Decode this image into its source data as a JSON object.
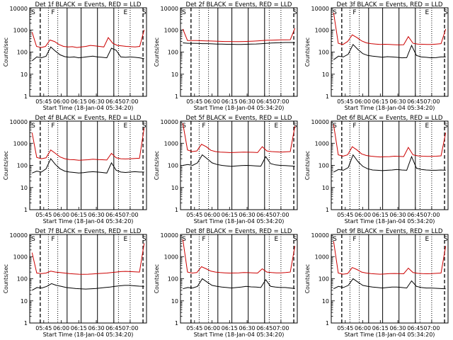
{
  "chart_data": [
    {
      "type": "line",
      "title": "Det 1f BLACK = Events, RED = LLD",
      "xlabel": "Start Time (18-Jan-04 05:34:20)",
      "ylabel": "Counts/sec",
      "y_scale": "log",
      "ylim": [
        1,
        10000
      ],
      "y_ticks": [
        "1",
        "10",
        "100",
        "1000"
      ],
      "x_ticks": [
        "05:45",
        "06:00",
        "06:15",
        "06:30",
        "06:45",
        "07:00"
      ],
      "markers": [
        "S",
        "F",
        "",
        "",
        "E",
        "S"
      ],
      "series": [
        {
          "name": "BLACK = Events",
          "color": "#000000",
          "values": [
            40,
            60,
            55,
            65,
            170,
            110,
            75,
            62,
            58,
            60,
            55,
            58,
            62,
            65,
            60,
            58,
            55,
            150,
            120,
            60,
            58,
            60,
            58,
            55,
            50
          ]
        },
        {
          "name": "RED = LLD",
          "color": "#cc0000",
          "values": [
            800,
            180,
            160,
            180,
            350,
            300,
            220,
            180,
            170,
            175,
            160,
            170,
            180,
            200,
            190,
            180,
            170,
            450,
            250,
            200,
            190,
            180,
            175,
            170,
            180,
            1000
          ]
        }
      ]
    },
    {
      "type": "line",
      "title": "Det 2f BLACK = Events, RED = LLD",
      "xlabel": "Start Time (18-Jan-04 05:34:20)",
      "ylabel": "Counts/sec",
      "y_scale": "log",
      "ylim": [
        1,
        10000
      ],
      "y_ticks": [
        "1",
        "10",
        "100",
        "1000"
      ],
      "x_ticks": [
        "05:45",
        "06:00",
        "06:15",
        "06:30",
        "06:45",
        "07:00"
      ],
      "markers": [
        "S",
        "",
        "",
        "",
        "",
        "S"
      ],
      "series": [
        {
          "name": "BLACK = Events",
          "color": "#000000",
          "values": [
            260,
            250,
            250,
            245,
            240,
            240,
            235,
            230,
            228,
            225,
            225,
            222,
            222,
            225,
            228,
            232,
            238,
            245,
            255,
            260,
            265,
            270,
            270,
            268
          ]
        },
        {
          "name": "RED = LLD",
          "color": "#cc0000",
          "values": [
            1100,
            330,
            330,
            330,
            325,
            320,
            315,
            310,
            305,
            300,
            300,
            298,
            298,
            300,
            305,
            310,
            320,
            330,
            340,
            345,
            350,
            355,
            355,
            360,
            1200
          ]
        }
      ]
    },
    {
      "type": "line",
      "title": "Det 3f BLACK = Events, RED = LLD",
      "xlabel": "Start Time (18-Jan-04 05:34:20)",
      "ylabel": "Counts/sec",
      "y_scale": "log",
      "ylim": [
        1,
        10000
      ],
      "y_ticks": [
        "1",
        "10",
        "100",
        "1000"
      ],
      "x_ticks": [
        "05:45",
        "06:00",
        "06:15",
        "06:30",
        "06:45",
        "07:00"
      ],
      "markers": [
        "S",
        "F",
        "",
        "",
        "E",
        "S"
      ],
      "series": [
        {
          "name": "BLACK = Events",
          "color": "#000000",
          "values": [
            45,
            65,
            60,
            80,
            220,
            130,
            85,
            70,
            65,
            62,
            58,
            62,
            60,
            58,
            55,
            56,
            200,
            70,
            60,
            58,
            55,
            56,
            60,
            60
          ]
        },
        {
          "name": "RED = LLD",
          "color": "#cc0000",
          "values": [
            6000,
            250,
            220,
            300,
            600,
            450,
            320,
            260,
            240,
            230,
            220,
            225,
            220,
            215,
            210,
            215,
            500,
            250,
            230,
            225,
            220,
            220,
            230,
            240,
            1100
          ]
        }
      ]
    },
    {
      "type": "line",
      "title": "Det 4f BLACK = Events, RED = LLD",
      "xlabel": "Start Time (18-Jan-04 05:34:20)",
      "ylabel": "Counts/sec",
      "y_scale": "log",
      "ylim": [
        1,
        10000
      ],
      "y_ticks": [
        "1",
        "10",
        "100",
        "1000"
      ],
      "x_ticks": [
        "05:45",
        "06:00",
        "06:15",
        "06:30",
        "06:45",
        "07:00"
      ],
      "markers": [
        "S",
        "F",
        "",
        "",
        "E",
        "S"
      ],
      "series": [
        {
          "name": "BLACK = Events",
          "color": "#000000",
          "values": [
            45,
            55,
            50,
            70,
            200,
            110,
            70,
            55,
            50,
            48,
            45,
            47,
            50,
            52,
            50,
            48,
            45,
            130,
            60,
            50,
            48,
            50,
            52,
            50,
            50
          ]
        },
        {
          "name": "RED = LLD",
          "color": "#cc0000",
          "values": [
            3000,
            230,
            200,
            220,
            500,
            350,
            240,
            200,
            185,
            180,
            170,
            175,
            180,
            190,
            185,
            180,
            175,
            350,
            220,
            200,
            195,
            200,
            205,
            210,
            5000
          ]
        }
      ]
    },
    {
      "type": "line",
      "title": "Det 5f BLACK = Events, RED = LLD",
      "xlabel": "Start Time (18-Jan-04 05:34:20)",
      "ylabel": "Counts/sec",
      "y_scale": "log",
      "ylim": [
        1,
        10000
      ],
      "y_ticks": [
        "1",
        "10",
        "100",
        "1000"
      ],
      "x_ticks": [
        "05:45",
        "06:00",
        "06:15",
        "06:30",
        "06:45",
        "07:00"
      ],
      "markers": [
        "S",
        "F",
        "",
        "",
        "E",
        "S"
      ],
      "series": [
        {
          "name": "BLACK = Events",
          "color": "#000000",
          "values": [
            100,
            110,
            100,
            130,
            300,
            200,
            130,
            110,
            100,
            95,
            90,
            95,
            98,
            100,
            98,
            95,
            92,
            250,
            120,
            105,
            100,
            98,
            95,
            92
          ]
        },
        {
          "name": "RED = LLD",
          "color": "#cc0000",
          "values": [
            8000,
            500,
            420,
            450,
            900,
            700,
            480,
            420,
            400,
            390,
            380,
            385,
            390,
            400,
            395,
            390,
            380,
            700,
            450,
            420,
            410,
            400,
            410,
            420,
            6000
          ]
        }
      ]
    },
    {
      "type": "line",
      "title": "Det 6f BLACK = Events, RED = LLD",
      "xlabel": "Start Time (18-Jan-04 05:34:20)",
      "ylabel": "Counts/sec",
      "y_scale": "log",
      "ylim": [
        1,
        10000
      ],
      "y_ticks": [
        "1",
        "10",
        "100",
        "1000"
      ],
      "x_ticks": [
        "05:45",
        "06:00",
        "06:15",
        "06:30",
        "06:45",
        "07:00"
      ],
      "markers": [
        "S",
        "F",
        "",
        "",
        "E",
        "S"
      ],
      "series": [
        {
          "name": "BLACK = Events",
          "color": "#000000",
          "values": [
            50,
            65,
            60,
            80,
            300,
            150,
            90,
            70,
            62,
            60,
            58,
            60,
            62,
            65,
            62,
            60,
            250,
            75,
            65,
            62,
            60,
            60,
            62,
            60
          ]
        },
        {
          "name": "RED = LLD",
          "color": "#cc0000",
          "values": [
            7000,
            300,
            260,
            300,
            700,
            500,
            330,
            280,
            260,
            250,
            240,
            245,
            250,
            260,
            255,
            250,
            650,
            300,
            270,
            260,
            255,
            255,
            260,
            270,
            3000
          ]
        }
      ]
    },
    {
      "type": "line",
      "title": "Det 7f BLACK = Events, RED = LLD",
      "xlabel": "Start Time (18-Jan-04 05:34:20)",
      "ylabel": "Counts/sec",
      "y_scale": "log",
      "ylim": [
        1,
        10000
      ],
      "y_ticks": [
        "1",
        "10",
        "100",
        "1000"
      ],
      "x_ticks": [
        "05:45",
        "06:00",
        "06:15",
        "06:30",
        "06:45",
        "07:00"
      ],
      "markers": [
        "S",
        "F",
        "",
        "",
        "E",
        "S"
      ],
      "series": [
        {
          "name": "BLACK = Events",
          "color": "#000000",
          "values": [
            30,
            40,
            38,
            45,
            60,
            50,
            45,
            40,
            38,
            36,
            35,
            34,
            35,
            36,
            38,
            40,
            42,
            45,
            48,
            50,
            50,
            48,
            46,
            45
          ]
        },
        {
          "name": "RED = LLD",
          "color": "#cc0000",
          "values": [
            1500,
            180,
            170,
            180,
            220,
            200,
            190,
            180,
            170,
            165,
            160,
            158,
            160,
            165,
            170,
            175,
            180,
            190,
            200,
            210,
            215,
            210,
            205,
            200,
            4000
          ]
        }
      ]
    },
    {
      "type": "line",
      "title": "Det 8f BLACK = Events, RED = LLD",
      "xlabel": "Start Time (18-Jan-04 05:34:20)",
      "ylabel": "Counts/sec",
      "y_scale": "log",
      "ylim": [
        1,
        10000
      ],
      "y_ticks": [
        "1",
        "10",
        "100",
        "1000"
      ],
      "x_ticks": [
        "05:45",
        "06:00",
        "06:15",
        "06:30",
        "06:45",
        "07:00"
      ],
      "markers": [
        "S",
        "F",
        "",
        "",
        "E",
        "S"
      ],
      "series": [
        {
          "name": "BLACK = Events",
          "color": "#000000",
          "values": [
            35,
            40,
            38,
            45,
            100,
            70,
            50,
            45,
            42,
            40,
            38,
            40,
            42,
            45,
            43,
            42,
            40,
            90,
            45,
            42,
            40,
            40,
            38,
            36
          ]
        },
        {
          "name": "RED = LLD",
          "color": "#cc0000",
          "values": [
            6000,
            200,
            180,
            190,
            350,
            280,
            220,
            200,
            190,
            185,
            180,
            182,
            185,
            190,
            188,
            185,
            180,
            280,
            200,
            190,
            185,
            185,
            190,
            200,
            3000
          ]
        }
      ]
    },
    {
      "type": "line",
      "title": "Det 9f BLACK = Events, RED = LLD",
      "xlabel": "Start Time (18-Jan-04 05:34:20)",
      "ylabel": "Counts/sec",
      "y_scale": "log",
      "ylim": [
        1,
        10000
      ],
      "y_ticks": [
        "1",
        "10",
        "100",
        "1000"
      ],
      "x_ticks": [
        "05:45",
        "06:00",
        "06:15",
        "06:30",
        "06:45",
        "07:00"
      ],
      "markers": [
        "S",
        "F",
        "",
        "",
        "E",
        "S"
      ],
      "series": [
        {
          "name": "BLACK = Events",
          "color": "#000000",
          "values": [
            35,
            45,
            40,
            50,
            100,
            70,
            50,
            45,
            42,
            40,
            38,
            40,
            42,
            42,
            40,
            38,
            80,
            45,
            40,
            38,
            38,
            37,
            36,
            35
          ]
        },
        {
          "name": "RED = LLD",
          "color": "#cc0000",
          "values": [
            5000,
            180,
            160,
            170,
            320,
            260,
            200,
            180,
            170,
            165,
            160,
            165,
            170,
            172,
            170,
            168,
            300,
            190,
            175,
            170,
            168,
            170,
            175,
            180,
            3000
          ]
        }
      ]
    }
  ]
}
